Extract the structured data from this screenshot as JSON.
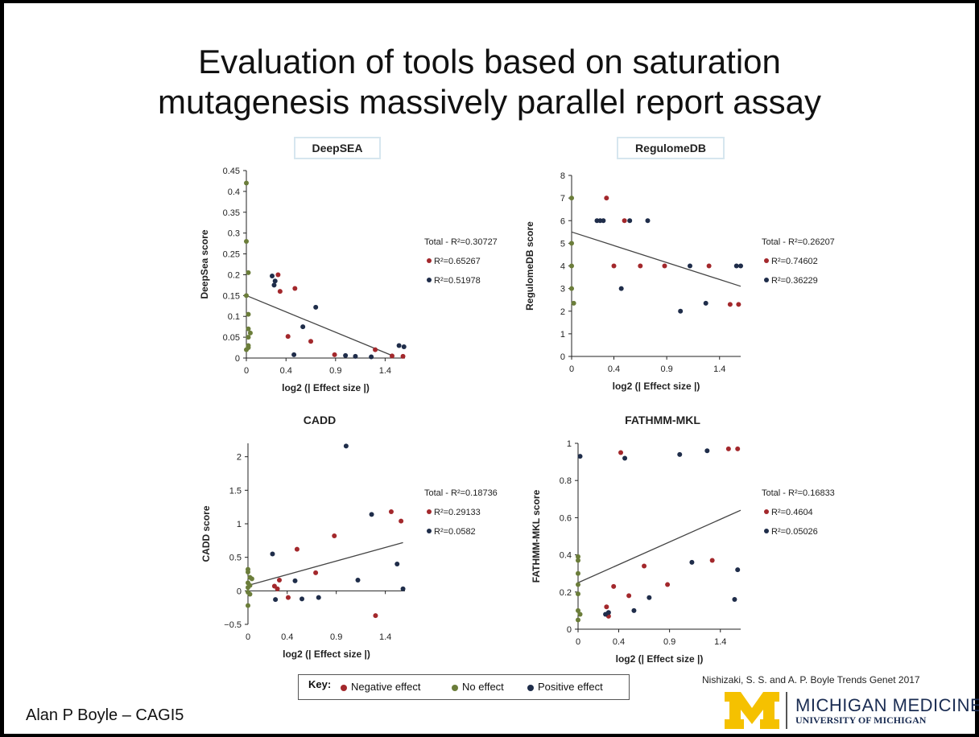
{
  "slide": {
    "title_line1": "Evaluation of tools based on saturation",
    "title_line2": "mutagenesis massively parallel report assay",
    "author": "Alan P Boyle – CAGI5",
    "citation": "Nishizaki, S. S. and A. P. Boyle  Trends Genet 2017",
    "logo_line1": "MICHIGAN MEDICINE",
    "logo_line2": "UNIVERSITY OF MICHIGAN"
  },
  "legend": {
    "key_label": "Key:",
    "negative": "Negative effect",
    "none": "No effect",
    "positive": "Positive effect"
  },
  "colors": {
    "negative": "#a3282c",
    "none": "#6b7d3a",
    "positive": "#1f2d4a",
    "trend": "#444444",
    "axis": "#222222",
    "boxed_border": "#d6e6ef"
  },
  "chart_data": [
    {
      "type": "scatter",
      "title": "DeepSEA",
      "xlabel": "log2 (| Effect size |)",
      "ylabel": "DeepSea score",
      "xlim": [
        0,
        1.6
      ],
      "ylim": [
        0,
        0.45
      ],
      "xticks": [
        0,
        0.4,
        0.9,
        1.4
      ],
      "xtick_labels": [
        "0",
        "0.4",
        "0.9",
        "1.4"
      ],
      "yticks": [
        0,
        0.05,
        0.1,
        0.15,
        0.2,
        0.25,
        0.3,
        0.35,
        0.4,
        0.45
      ],
      "ytick_labels": [
        "0",
        "0.05",
        "0.1",
        "0.15",
        "0.2",
        "0.25",
        "0.3",
        "0.35",
        "0.4",
        "0.45"
      ],
      "trend": [
        [
          0,
          0.15
        ],
        [
          1.48,
          0.005
        ]
      ],
      "r2_labels": [
        "Total - R²=0.30727",
        "R²=0.65267",
        "R²=0.51978"
      ],
      "series": [
        {
          "name": "Negative effect",
          "points": [
            [
              0.32,
              0.2
            ],
            [
              0.34,
              0.16
            ],
            [
              0.49,
              0.167
            ],
            [
              0.42,
              0.052
            ],
            [
              0.65,
              0.04
            ],
            [
              0.89,
              0.008
            ],
            [
              1.3,
              0.02
            ],
            [
              1.47,
              0.005
            ],
            [
              1.58,
              0.004
            ]
          ]
        },
        {
          "name": "No effect",
          "points": [
            [
              0,
              0.42
            ],
            [
              0,
              0.28
            ],
            [
              0.02,
              0.205
            ],
            [
              0,
              0.15
            ],
            [
              0.02,
              0.105
            ],
            [
              0.02,
              0.07
            ],
            [
              0.04,
              0.06
            ],
            [
              0.02,
              0.05
            ],
            [
              0.02,
              0.03
            ],
            [
              0.02,
              0.025
            ],
            [
              0,
              0.02
            ]
          ]
        },
        {
          "name": "Positive effect",
          "points": [
            [
              0.26,
              0.197
            ],
            [
              0.28,
              0.175
            ],
            [
              0.29,
              0.185
            ],
            [
              0.57,
              0.075
            ],
            [
              0.7,
              0.122
            ],
            [
              0.48,
              0.008
            ],
            [
              1.0,
              0.006
            ],
            [
              1.1,
              0.004
            ],
            [
              1.26,
              0.003
            ],
            [
              1.54,
              0.03
            ],
            [
              1.59,
              0.027
            ]
          ]
        }
      ]
    },
    {
      "type": "scatter",
      "title": "RegulomeDB",
      "xlabel": "log2 (| Effect size |)",
      "ylabel": "RegulomeDB score",
      "xlim": [
        0,
        1.6
      ],
      "ylim": [
        0,
        8
      ],
      "xticks": [
        0,
        0.4,
        0.9,
        1.4
      ],
      "xtick_labels": [
        "0",
        "0.4",
        "0.9",
        "1.4"
      ],
      "yticks": [
        0,
        1,
        2,
        3,
        4,
        5,
        6,
        7,
        8
      ],
      "ytick_labels": [
        "0",
        "1",
        "2",
        "3",
        "4",
        "5",
        "6",
        "7",
        "8"
      ],
      "trend": [
        [
          0,
          5.5
        ],
        [
          1.6,
          3.1
        ]
      ],
      "r2_labels": [
        "Total - R²=0.26207",
        "R²=0.74602",
        "R²=0.36229"
      ],
      "series": [
        {
          "name": "Negative effect",
          "points": [
            [
              0.33,
              7
            ],
            [
              0.4,
              4
            ],
            [
              0.5,
              6
            ],
            [
              0.65,
              4
            ],
            [
              0.88,
              4
            ],
            [
              1.3,
              4
            ],
            [
              1.5,
              2.3
            ],
            [
              1.58,
              2.3
            ]
          ]
        },
        {
          "name": "No effect",
          "points": [
            [
              0,
              7
            ],
            [
              0,
              5
            ],
            [
              0,
              4
            ],
            [
              0,
              3
            ],
            [
              0.02,
              2.35
            ]
          ]
        },
        {
          "name": "Positive effect",
          "points": [
            [
              0.24,
              6
            ],
            [
              0.27,
              6
            ],
            [
              0.3,
              6
            ],
            [
              0.55,
              6
            ],
            [
              0.72,
              6
            ],
            [
              0.47,
              3
            ],
            [
              1.03,
              2
            ],
            [
              1.12,
              4
            ],
            [
              1.27,
              2.35
            ],
            [
              1.56,
              4
            ],
            [
              1.6,
              4
            ]
          ]
        }
      ]
    },
    {
      "type": "scatter",
      "title": "CADD",
      "xlabel": "log2 (| Effect size |)",
      "ylabel": "CADD score",
      "xlim": [
        0,
        1.6
      ],
      "ylim": [
        -0.5,
        2.2
      ],
      "xticks": [
        0,
        0.4,
        0.9,
        1.4
      ],
      "xtick_labels": [
        "0",
        "0.4",
        "0.9",
        "1.4"
      ],
      "yticks": [
        -0.5,
        0,
        0.5,
        1,
        1.5,
        2
      ],
      "ytick_labels": [
        "−0.5",
        "0",
        "0.5",
        "1",
        "1.5",
        "2"
      ],
      "trend": [
        [
          0,
          0.08
        ],
        [
          1.58,
          0.72
        ]
      ],
      "r2_labels": [
        "Total - R²=0.18736",
        "R²=0.29133",
        "R²=0.0582"
      ],
      "series": [
        {
          "name": "Negative effect",
          "points": [
            [
              0.27,
              0.07
            ],
            [
              0.3,
              0.03
            ],
            [
              0.32,
              0.16
            ],
            [
              0.41,
              -0.1
            ],
            [
              0.5,
              0.62
            ],
            [
              0.69,
              0.27
            ],
            [
              0.88,
              0.82
            ],
            [
              1.3,
              -0.37
            ],
            [
              1.46,
              1.18
            ],
            [
              1.56,
              1.04
            ]
          ]
        },
        {
          "name": "No effect",
          "points": [
            [
              0,
              0.32
            ],
            [
              0,
              0.28
            ],
            [
              0.02,
              0.2
            ],
            [
              0.04,
              0.18
            ],
            [
              0,
              0.12
            ],
            [
              0.02,
              0.08
            ],
            [
              0,
              0.05
            ],
            [
              0,
              -0.02
            ],
            [
              0.02,
              -0.05
            ],
            [
              0,
              -0.22
            ]
          ]
        },
        {
          "name": "Positive effect",
          "points": [
            [
              0.25,
              0.55
            ],
            [
              0.28,
              -0.13
            ],
            [
              0.48,
              0.15
            ],
            [
              0.55,
              -0.12
            ],
            [
              0.72,
              -0.1
            ],
            [
              1.0,
              2.16
            ],
            [
              1.12,
              0.16
            ],
            [
              1.26,
              1.14
            ],
            [
              1.52,
              0.4
            ],
            [
              1.58,
              0.03
            ]
          ]
        }
      ]
    },
    {
      "type": "scatter",
      "title": "FATHMM-MKL",
      "xlabel": "log2 (| Effect size |)",
      "ylabel": "FATHMM-MKL score",
      "xlim": [
        0,
        1.6
      ],
      "ylim": [
        0,
        1
      ],
      "xticks": [
        0,
        0.4,
        0.9,
        1.4
      ],
      "xtick_labels": [
        "0",
        "0.4",
        "0.9",
        "1.4"
      ],
      "yticks": [
        0,
        0.2,
        0.4,
        0.6,
        0.8,
        1
      ],
      "ytick_labels": [
        "0",
        "0.2",
        "0.4",
        "0.6",
        "0.8",
        "1"
      ],
      "trend": [
        [
          0,
          0.25
        ],
        [
          1.6,
          0.64
        ]
      ],
      "r2_labels": [
        "Total - R²=0.16833",
        "R²=0.4604",
        "R²=0.05026"
      ],
      "series": [
        {
          "name": "Negative effect",
          "points": [
            [
              0.28,
              0.12
            ],
            [
              0.3,
              0.07
            ],
            [
              0.35,
              0.23
            ],
            [
              0.42,
              0.95
            ],
            [
              0.5,
              0.18
            ],
            [
              0.65,
              0.34
            ],
            [
              0.88,
              0.24
            ],
            [
              1.32,
              0.37
            ],
            [
              1.48,
              0.97
            ],
            [
              1.57,
              0.97
            ]
          ]
        },
        {
          "name": "No effect",
          "points": [
            [
              0,
              0.39
            ],
            [
              0,
              0.37
            ],
            [
              0,
              0.3
            ],
            [
              0,
              0.24
            ],
            [
              0,
              0.19
            ],
            [
              0,
              0.1
            ],
            [
              0.02,
              0.08
            ],
            [
              0,
              0.05
            ]
          ]
        },
        {
          "name": "Positive effect",
          "points": [
            [
              0.02,
              0.93
            ],
            [
              0.27,
              0.08
            ],
            [
              0.3,
              0.09
            ],
            [
              0.46,
              0.92
            ],
            [
              0.55,
              0.1
            ],
            [
              0.7,
              0.17
            ],
            [
              1.0,
              0.94
            ],
            [
              1.12,
              0.36
            ],
            [
              1.27,
              0.96
            ],
            [
              1.54,
              0.16
            ],
            [
              1.57,
              0.32
            ]
          ]
        }
      ]
    }
  ]
}
